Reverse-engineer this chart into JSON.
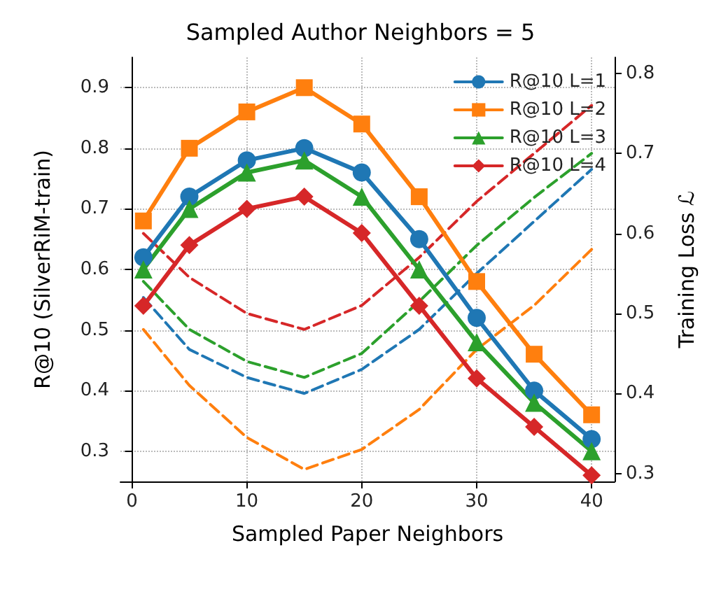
{
  "chart_data": {
    "type": "line",
    "title": "Sampled Author Neighbors = 5",
    "xlabel": "Sampled Paper Neighbors",
    "ylabel": "R@10 (SilverRiM-train)",
    "y2label": "Training Loss ℒ",
    "x": [
      1,
      5,
      10,
      15,
      20,
      25,
      30,
      35,
      40
    ],
    "xlim": [
      -1,
      42
    ],
    "xticks": [
      0,
      10,
      20,
      30,
      40
    ],
    "ylim": [
      0.25,
      0.95
    ],
    "yticks": [
      0.3,
      0.4,
      0.5,
      0.6,
      0.7,
      0.8,
      0.9
    ],
    "y2lim": [
      0.29,
      0.82
    ],
    "y2ticks": [
      0.3,
      0.4,
      0.5,
      0.6,
      0.7,
      0.8
    ],
    "grid": true,
    "legend": "top right",
    "series": [
      {
        "name": "R@10 L=1",
        "color": "#1f77b4",
        "marker": "circle",
        "line_style": "solid",
        "values": [
          0.62,
          0.72,
          0.78,
          0.8,
          0.76,
          0.65,
          0.52,
          0.4,
          0.32
        ]
      },
      {
        "name": "R@10 L=2",
        "color": "#ff7f0e",
        "marker": "square",
        "line_style": "solid",
        "values": [
          0.68,
          0.8,
          0.86,
          0.9,
          0.84,
          0.72,
          0.58,
          0.46,
          0.36
        ]
      },
      {
        "name": "R@10 L=3",
        "color": "#2ca02c",
        "marker": "triangle",
        "line_style": "solid",
        "values": [
          0.6,
          0.7,
          0.76,
          0.78,
          0.72,
          0.6,
          0.48,
          0.38,
          0.3
        ]
      },
      {
        "name": "R@10 L=4",
        "color": "#d62728",
        "marker": "diamond",
        "line_style": "solid",
        "values": [
          0.54,
          0.64,
          0.7,
          0.72,
          0.66,
          0.54,
          0.42,
          0.34,
          0.26
        ]
      },
      {
        "color": "#1f77b4",
        "axis": "y2",
        "marker": "none",
        "line_style": "dashed",
        "values": [
          0.52,
          0.455,
          0.42,
          0.4,
          0.43,
          0.48,
          0.55,
          0.615,
          0.68
        ]
      },
      {
        "color": "#ff7f0e",
        "axis": "y2",
        "marker": "none",
        "line_style": "dashed",
        "values": [
          0.48,
          0.41,
          0.345,
          0.305,
          0.33,
          0.38,
          0.455,
          0.51,
          0.58
        ]
      },
      {
        "color": "#2ca02c",
        "axis": "y2",
        "marker": "none",
        "line_style": "dashed",
        "values": [
          0.54,
          0.48,
          0.44,
          0.42,
          0.45,
          0.515,
          0.585,
          0.645,
          0.7
        ]
      },
      {
        "color": "#d62728",
        "axis": "y2",
        "marker": "none",
        "line_style": "dashed",
        "values": [
          0.6,
          0.545,
          0.5,
          0.48,
          0.51,
          0.57,
          0.64,
          0.7,
          0.76
        ]
      }
    ]
  }
}
